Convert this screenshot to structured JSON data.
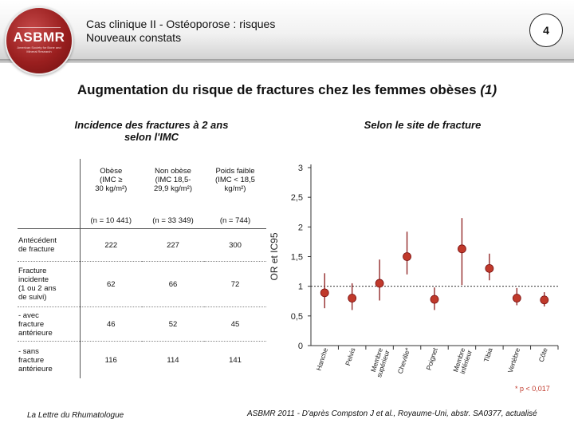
{
  "header": {
    "logo_text": "ASBMR",
    "logo_subtext": "American Society for Bone and Mineral Research",
    "title_line1": "Cas clinique II - Ostéoporose : risques",
    "title_line2": "Nouveaux constats",
    "page_number": "4"
  },
  "main_title": "Augmentation du risque de fractures chez les femmes obèses",
  "main_title_ref": "(1)",
  "left_section": {
    "heading_line1": "Incidence des fractures à 2 ans",
    "heading_line2": "selon l'IMC"
  },
  "right_section": {
    "heading": "Selon le site de fracture"
  },
  "table": {
    "columns": [
      {
        "l1": "Obèse",
        "l2": "(IMC ≥",
        "l3": "30 kg/m²)",
        "n": "(n = 10 441)"
      },
      {
        "l1": "Non obèse",
        "l2": "(IMC 18,5-",
        "l3": "29,9 kg/m²)",
        "n": "(n = 33 349)"
      },
      {
        "l1": "Poids faible",
        "l2": "(IMC < 18,5",
        "l3": "kg/m²)",
        "n": "(n = 744)"
      }
    ],
    "rows": [
      {
        "label_lines": [
          "Antécédent",
          "de fracture"
        ],
        "values": [
          "222",
          "227",
          "300"
        ]
      },
      {
        "label_lines": [
          "Fracture",
          "incidente",
          "(1 ou 2 ans",
          "de suivi)"
        ],
        "values": [
          "62",
          "66",
          "72"
        ]
      },
      {
        "label_lines": [
          "- avec",
          "fracture",
          "antérieure"
        ],
        "values": [
          "46",
          "52",
          "45"
        ]
      },
      {
        "label_lines": [
          "- sans",
          "fracture",
          "antérieure"
        ],
        "values": [
          "116",
          "114",
          "141"
        ]
      }
    ]
  },
  "chart_data": {
    "type": "scatter",
    "title": "",
    "xlabel": "",
    "ylabel": "OR et IC95",
    "ylim": [
      0,
      3
    ],
    "yticks": [
      "0",
      "0,5",
      "1",
      "1,5",
      "2",
      "2,5",
      "3"
    ],
    "reference_line": 1,
    "grid": false,
    "categories": [
      "Hanche",
      "Pelvis",
      "Membre supérieur",
      "Cheville*",
      "Poignet",
      "Membre inférieur",
      "Tibia",
      "Vertèbre",
      "Côte"
    ],
    "category_labels": [
      [
        "Hanche"
      ],
      [
        "Pelvis"
      ],
      [
        "Membre",
        "supérieur"
      ],
      [
        "Cheville*"
      ],
      [
        "Poignet"
      ],
      [
        "Membre",
        "inférieur"
      ],
      [
        "Tibia"
      ],
      [
        "Vertèbre"
      ],
      [
        "Côte"
      ]
    ],
    "estimates": [
      0.89,
      0.8,
      1.05,
      1.5,
      0.78,
      1.63,
      1.3,
      0.8,
      0.77
    ],
    "ci_low": [
      0.63,
      0.6,
      0.76,
      1.2,
      0.6,
      1.02,
      1.1,
      0.68,
      0.66
    ],
    "ci_high": [
      1.22,
      1.05,
      1.45,
      1.92,
      0.98,
      2.15,
      1.55,
      0.97,
      0.9
    ],
    "marker_color": "#c0392b",
    "line_color": "#8b1a1a"
  },
  "footnote": "* p < 0,017",
  "footer": {
    "left": "La Lettre du Rhumatologue",
    "right": "ASBMR 2011 - D'après Compston J et al., Royaume-Uni, abstr. SA0377, actualisé"
  }
}
